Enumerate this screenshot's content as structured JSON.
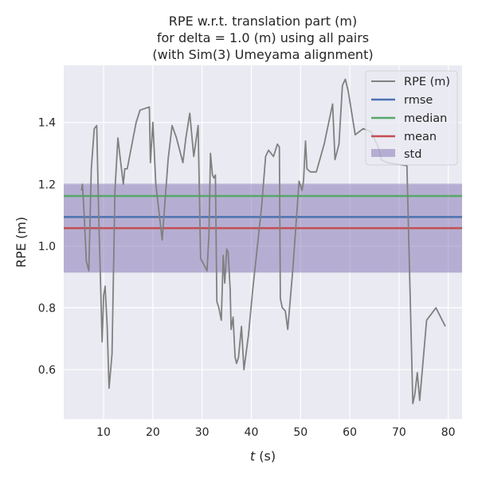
{
  "chart_data": {
    "type": "line",
    "title": [
      "RPE w.r.t. translation part (m)",
      "for delta = 1.0 (m) using all pairs",
      "(with Sim(3) Umeyama alignment)"
    ],
    "xlabel_italic": "t",
    "xlabel_rest": " (s)",
    "ylabel": "RPE (m)",
    "xlim": [
      1.9,
      82.8
    ],
    "ylim": [
      0.44,
      1.585
    ],
    "xticks": [
      10,
      20,
      30,
      40,
      50,
      60,
      70,
      80
    ],
    "xtick_labels": [
      "10",
      "20",
      "30",
      "40",
      "50",
      "60",
      "70",
      "80"
    ],
    "yticks": [
      0.6,
      0.8,
      1.0,
      1.2,
      1.4
    ],
    "ytick_labels": [
      "0.6",
      "0.8",
      "1.0",
      "1.2",
      "1.4"
    ],
    "grid": true,
    "legend_position": "top-right",
    "series": [
      {
        "name": "RPE (m)",
        "color": "#808080",
        "x": [
          5.5,
          5.7,
          6.0,
          6.5,
          7.0,
          7.5,
          8.1,
          8.6,
          9.0,
          9.7,
          10.0,
          10.3,
          10.7,
          11.1,
          11.7,
          12.3,
          12.9,
          13.4,
          14.0,
          14.3,
          14.8,
          15.4,
          16.6,
          17.4,
          19.3,
          19.5,
          20.0,
          20.6,
          21.9,
          23.1,
          23.9,
          24.8,
          26.1,
          26.7,
          27.5,
          28.3,
          29.2,
          29.7,
          31.0,
          31.4,
          31.7,
          32.1,
          32.4,
          32.7,
          33.0,
          33.4,
          33.9,
          34.3,
          34.6,
          35.0,
          35.3,
          35.7,
          35.9,
          36.3,
          36.7,
          37.0,
          37.4,
          38.0,
          38.5,
          39.4,
          40.3,
          42.1,
          42.9,
          43.5,
          44.5,
          45.3,
          45.7,
          45.9,
          46.3,
          46.9,
          47.4,
          48.4,
          49.7,
          50.3,
          50.6,
          51.0,
          51.3,
          52.0,
          53.2,
          54.8,
          56.5,
          57.0,
          57.8,
          58.5,
          59.1,
          59.7,
          61.1,
          62.7,
          64.3,
          65.8,
          66.4,
          67.5,
          71.6,
          72.8,
          73.2,
          73.7,
          74.2,
          75.6,
          77.5,
          79.4
        ],
        "y": [
          1.18,
          1.2,
          1.12,
          0.95,
          0.92,
          1.25,
          1.38,
          1.39,
          1.1,
          0.69,
          0.84,
          0.87,
          0.75,
          0.54,
          0.65,
          1.18,
          1.35,
          1.28,
          1.2,
          1.25,
          1.25,
          1.3,
          1.4,
          1.44,
          1.45,
          1.27,
          1.4,
          1.2,
          1.02,
          1.28,
          1.39,
          1.35,
          1.27,
          1.35,
          1.43,
          1.29,
          1.39,
          0.96,
          0.92,
          1.04,
          1.3,
          1.23,
          1.22,
          1.23,
          0.82,
          0.8,
          0.76,
          0.97,
          0.88,
          0.99,
          0.98,
          0.86,
          0.73,
          0.77,
          0.64,
          0.62,
          0.64,
          0.74,
          0.6,
          0.71,
          0.86,
          1.13,
          1.29,
          1.31,
          1.29,
          1.33,
          1.32,
          0.83,
          0.8,
          0.79,
          0.73,
          0.92,
          1.21,
          1.18,
          1.21,
          1.34,
          1.25,
          1.24,
          1.24,
          1.33,
          1.46,
          1.28,
          1.33,
          1.52,
          1.54,
          1.5,
          1.36,
          1.38,
          1.37,
          1.32,
          1.28,
          1.27,
          1.26,
          0.49,
          0.52,
          0.59,
          0.5,
          0.76,
          0.8,
          0.74
        ]
      },
      {
        "name": "rmse",
        "color": "#4c72b0",
        "value": 1.094
      },
      {
        "name": "median",
        "color": "#55a868",
        "value": 1.162
      },
      {
        "name": "mean",
        "color": "#c44e52",
        "value": 1.058
      },
      {
        "name": "std",
        "color": "#8172b2",
        "range": [
          0.914,
          1.202
        ]
      }
    ]
  }
}
